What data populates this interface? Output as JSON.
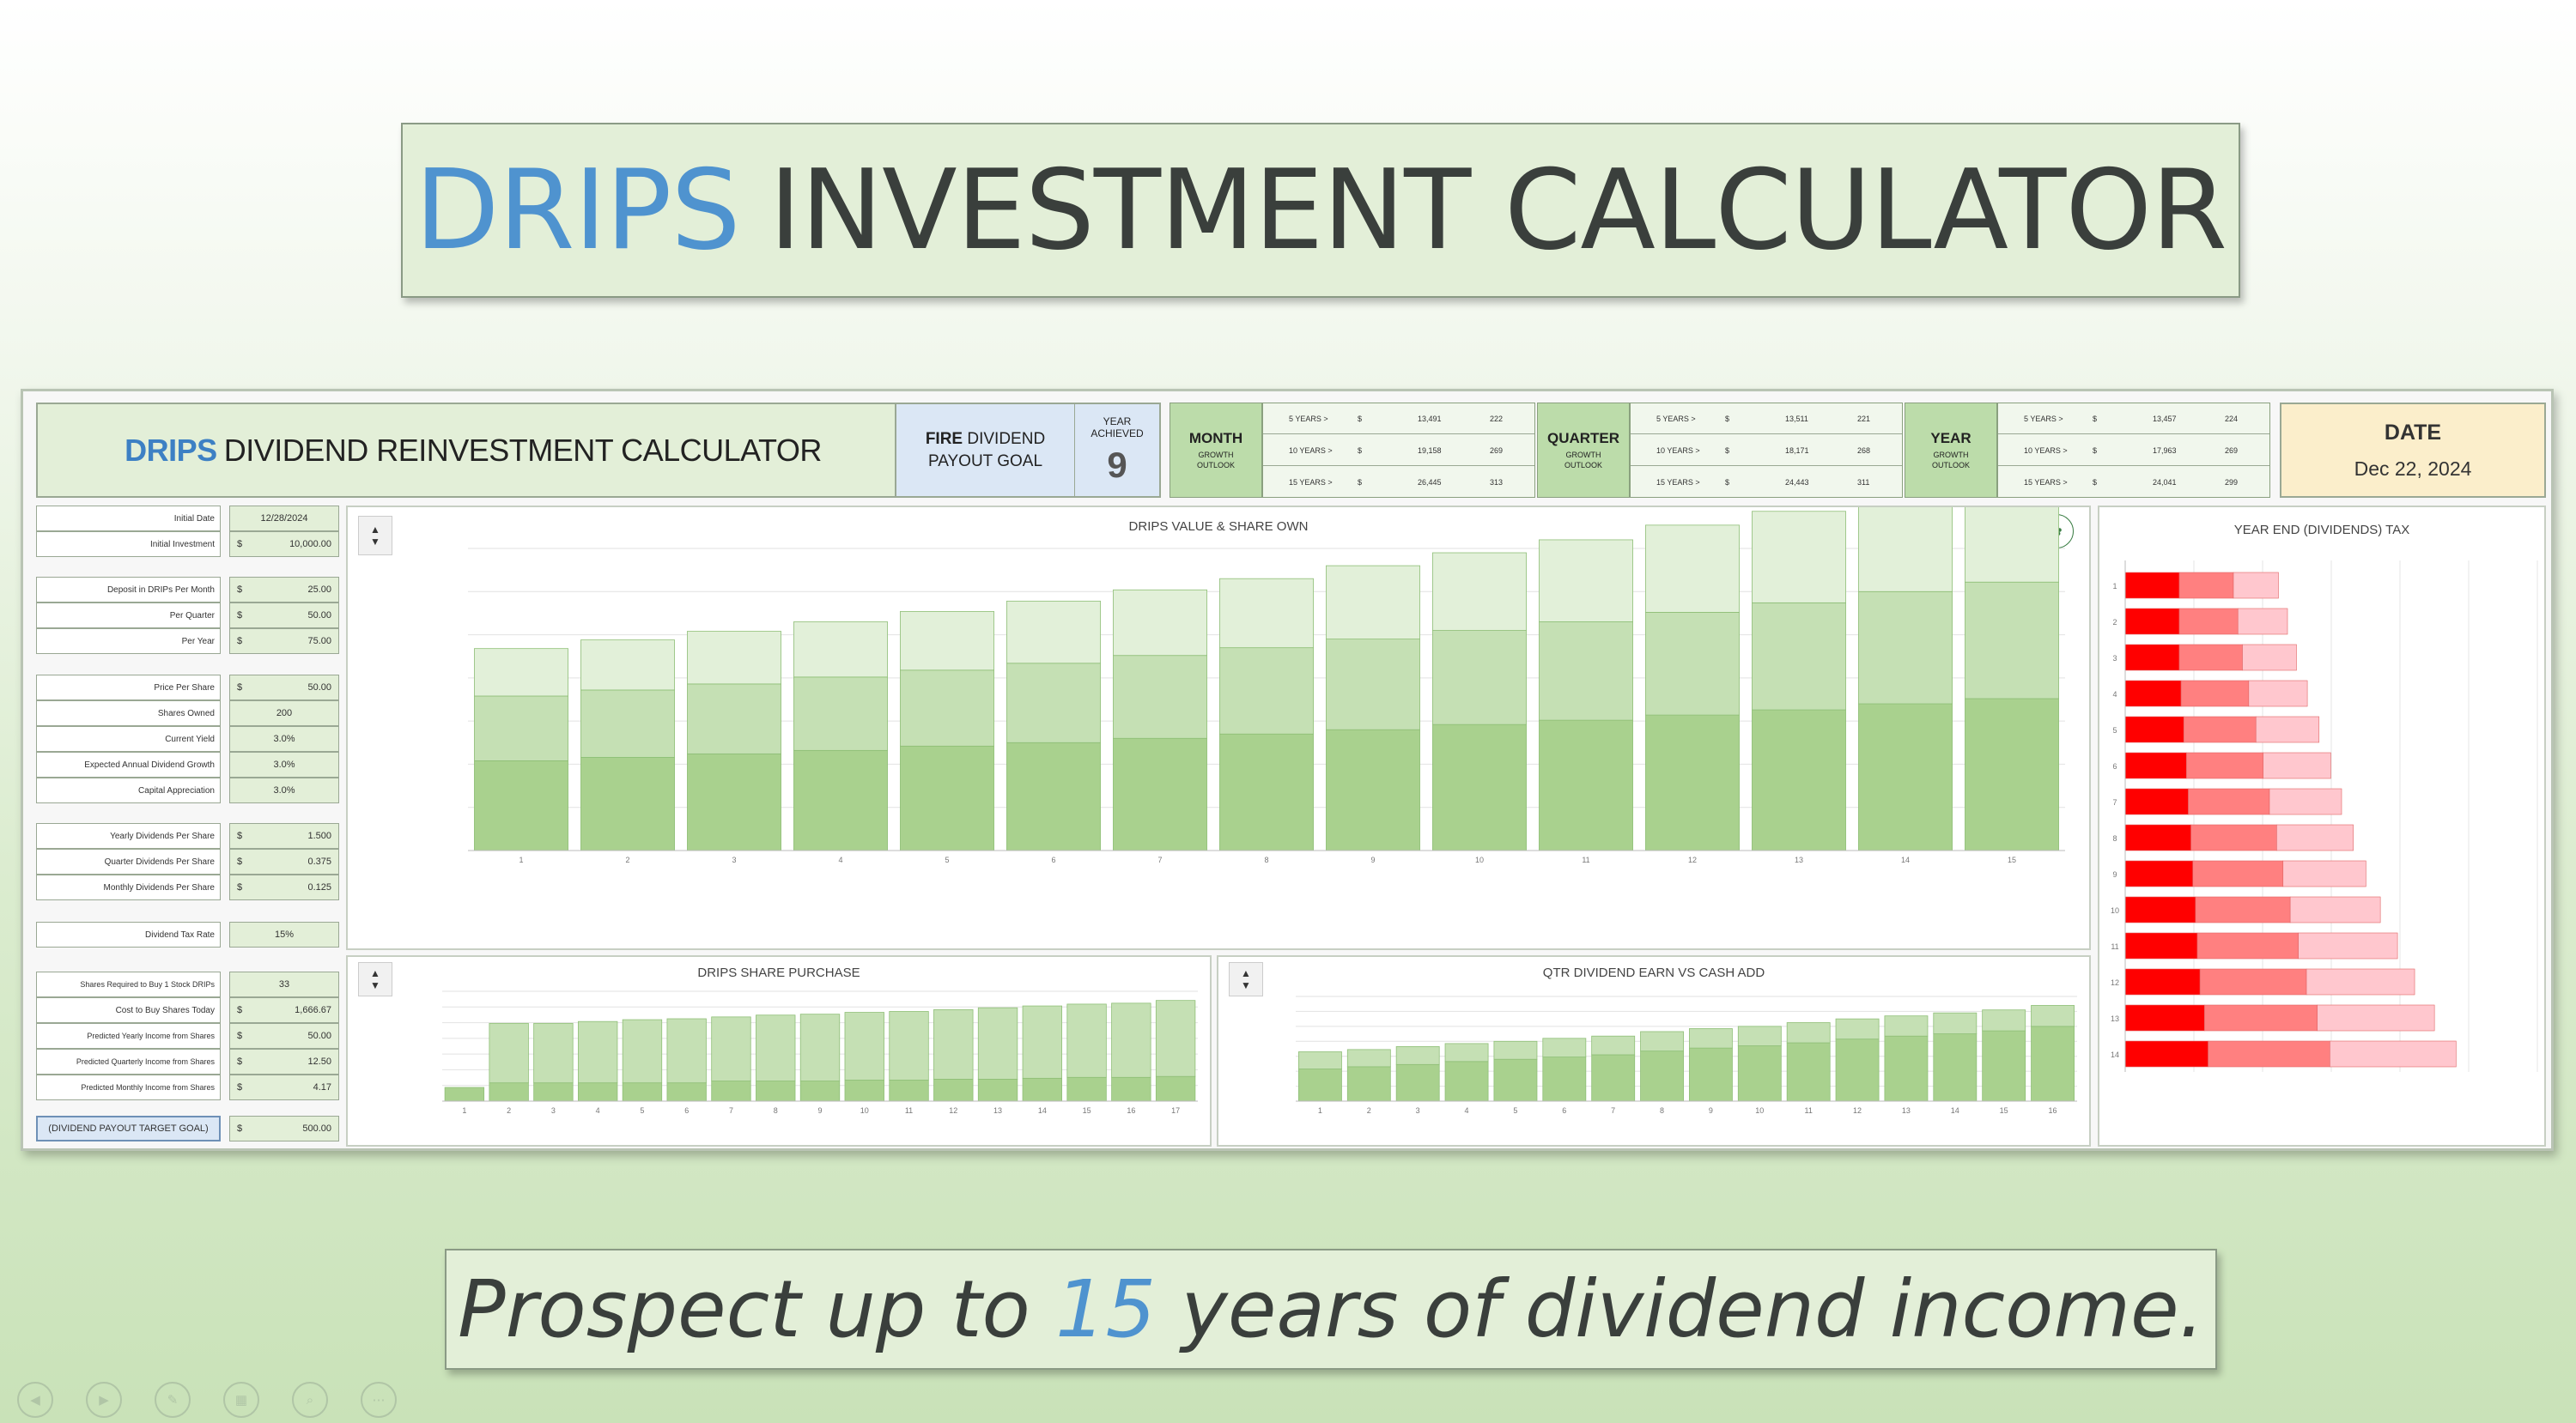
{
  "slide": {
    "title_accent": "DRIPS",
    "title_rest": "INVESTMENT CALCULATOR",
    "tagline_pre": "Prospect up to ",
    "tagline_num": "15",
    "tagline_post": " years of dividend income."
  },
  "sheet": {
    "title_accent": "DRIPS",
    "title_rest": "DIVIDEND REINVESTMENT CALCULATOR",
    "fire_goal": {
      "line1_bold": "FIRE",
      "line1_rest": " DIVIDEND",
      "line2": "PAYOUT GOAL",
      "year_label": "YEAR ACHIEVED",
      "year_value": "9"
    },
    "date": {
      "label": "DATE",
      "value": "Dec 22, 2024"
    },
    "growth": [
      {
        "label": "MONTH",
        "sub": "GROWTH OUTLOOK",
        "rows": [
          [
            "5 YEARS >",
            "$",
            "13,491",
            "222"
          ],
          [
            "10 YEARS >",
            "$",
            "19,158",
            "269"
          ],
          [
            "15 YEARS >",
            "$",
            "26,445",
            "313"
          ]
        ]
      },
      {
        "label": "QUARTER",
        "sub": "GROWTH OUTLOOK",
        "rows": [
          [
            "5 YEARS >",
            "$",
            "13,511",
            "221"
          ],
          [
            "10 YEARS >",
            "$",
            "18,171",
            "268"
          ],
          [
            "15 YEARS >",
            "$",
            "24,443",
            "311"
          ]
        ]
      },
      {
        "label": "YEAR",
        "sub": "GROWTH OUTLOOK",
        "rows": [
          [
            "5 YEARS >",
            "$",
            "13,457",
            "224"
          ],
          [
            "10 YEARS >",
            "$",
            "17,963",
            "269"
          ],
          [
            "15 YEARS >",
            "$",
            "24,041",
            "299"
          ]
        ]
      }
    ],
    "inputs": {
      "initial_date_label": "Initial Date",
      "initial_date": "12/28/2024",
      "initial_investment_label": "Initial Investment",
      "initial_investment": "10,000.00",
      "deposit_month_label": "Deposit in DRIPs Per Month",
      "deposit_month": "25.00",
      "per_quarter_label": "Per Quarter",
      "per_quarter": "50.00",
      "per_year_label": "Per Year",
      "per_year": "75.00",
      "price_per_share_label": "Price Per Share",
      "price_per_share": "50.00",
      "shares_owned_label": "Shares Owned",
      "shares_owned": "200",
      "current_yield_label": "Current Yield",
      "current_yield": "3.0%",
      "div_growth_label": "Expected Annual Dividend Growth",
      "div_growth": "3.0%",
      "cap_app_label": "Capital Appreciation",
      "cap_app": "3.0%",
      "yearly_div_label": "Yearly Dividends Per Share",
      "yearly_div": "1.500",
      "quarter_div_label": "Quarter Dividends Per Share",
      "quarter_div": "0.375",
      "monthly_div_label": "Monthly Dividends Per Share",
      "monthly_div": "0.125",
      "tax_rate_label": "Dividend Tax Rate",
      "tax_rate": "15%",
      "shares_req_label": "Shares Required to Buy 1 Stock DRIPs",
      "shares_req": "33",
      "cost_label": "Cost to Buy Shares Today",
      "cost": "1,666.67",
      "pred_yearly_label": "Predicted Yearly Income from Shares",
      "pred_yearly": "50.00",
      "pred_quarterly_label": "Predicted Quarterly Income from Shares",
      "pred_quarterly": "12.50",
      "pred_monthly_label": "Predicted Monthly Income from Shares",
      "pred_monthly": "4.17",
      "goal_label": "(DIVIDEND PAYOUT TARGET GOAL)",
      "goal": "500.00",
      "currency": "$"
    }
  },
  "colors": {
    "accent_blue": "#4f93cf",
    "green_light": "#e3efd8",
    "green_mid": "#bcdcaa",
    "bar_dark": "#a9d18e",
    "bar_mid": "#c5e0b4",
    "bar_light": "#e2f0d9",
    "red": "#ff0000",
    "red_mid": "#ff8080",
    "red_light": "#ffc7ce"
  },
  "chart_data": [
    {
      "type": "bar",
      "title": "DRIPS VALUE & SHARE OWN",
      "categories": [
        "1",
        "2",
        "3",
        "4",
        "5",
        "6",
        "7",
        "8",
        "9",
        "10",
        "11",
        "12",
        "13",
        "14",
        "15"
      ],
      "ylim": [
        0,
        35000
      ],
      "series": [
        {
          "values": [
            10400,
            10800,
            11200,
            11600,
            12100,
            12500,
            13000,
            13500,
            14000,
            14600,
            15100,
            15700,
            16300,
            17000,
            17600
          ]
        },
        {
          "values": [
            7500,
            7800,
            8100,
            8500,
            8800,
            9200,
            9600,
            10000,
            10500,
            10900,
            11400,
            11900,
            12400,
            13000,
            13500
          ]
        },
        {
          "values": [
            5500,
            5800,
            6100,
            6400,
            6800,
            7200,
            7600,
            8000,
            8500,
            9000,
            9500,
            10100,
            10600,
            11200,
            11900
          ]
        }
      ]
    },
    {
      "type": "bar",
      "title": "DRIPS SHARE PURCHASE",
      "categories": [
        "1",
        "2",
        "3",
        "4",
        "5",
        "6",
        "7",
        "8",
        "9",
        "10",
        "11",
        "12",
        "13",
        "14",
        "15",
        "16",
        "17"
      ],
      "ylim": [
        0,
        12
      ],
      "series": [
        {
          "values": [
            1.5,
            2,
            2,
            2,
            2,
            2,
            2.2,
            2.2,
            2.2,
            2.3,
            2.3,
            2.4,
            2.4,
            2.5,
            2.6,
            2.6,
            2.7
          ]
        },
        {
          "values": [
            0,
            6.5,
            6.5,
            6.7,
            6.9,
            7,
            7,
            7.2,
            7.3,
            7.4,
            7.5,
            7.6,
            7.8,
            7.9,
            8,
            8.1,
            8.3
          ]
        }
      ]
    },
    {
      "type": "bar",
      "title": "QTR DIVIDEND EARN VS CASH ADD",
      "categories": [
        "1",
        "2",
        "3",
        "4",
        "5",
        "6",
        "7",
        "8",
        "9",
        "10",
        "11",
        "12",
        "13",
        "14",
        "15",
        "16"
      ],
      "ylim": [
        0,
        14
      ],
      "series": [
        {
          "values": [
            4.3,
            4.6,
            4.9,
            5.3,
            5.6,
            5.9,
            6.2,
            6.7,
            7.1,
            7.4,
            7.8,
            8.3,
            8.7,
            9.0,
            9.4,
            10.0
          ]
        },
        {
          "values": [
            2.3,
            2.3,
            2.4,
            2.4,
            2.4,
            2.5,
            2.5,
            2.6,
            2.6,
            2.6,
            2.7,
            2.7,
            2.7,
            2.8,
            2.8,
            2.8
          ]
        }
      ]
    },
    {
      "type": "bar",
      "title": "YEAR END (DIVIDENDS) TAX",
      "orientation": "horizontal",
      "categories": [
        "1",
        "2",
        "3",
        "4",
        "5",
        "6",
        "7",
        "8",
        "9",
        "10",
        "11",
        "12",
        "13",
        "14"
      ],
      "series": [
        {
          "values": [
            60,
            60,
            60,
            62,
            65,
            68,
            70,
            73,
            75,
            78,
            80,
            83,
            88,
            92
          ]
        },
        {
          "values": [
            60,
            65,
            70,
            75,
            80,
            85,
            90,
            95,
            100,
            105,
            112,
            118,
            125,
            135
          ]
        },
        {
          "values": [
            50,
            55,
            60,
            65,
            70,
            75,
            80,
            85,
            92,
            100,
            110,
            120,
            130,
            140
          ]
        }
      ]
    }
  ]
}
